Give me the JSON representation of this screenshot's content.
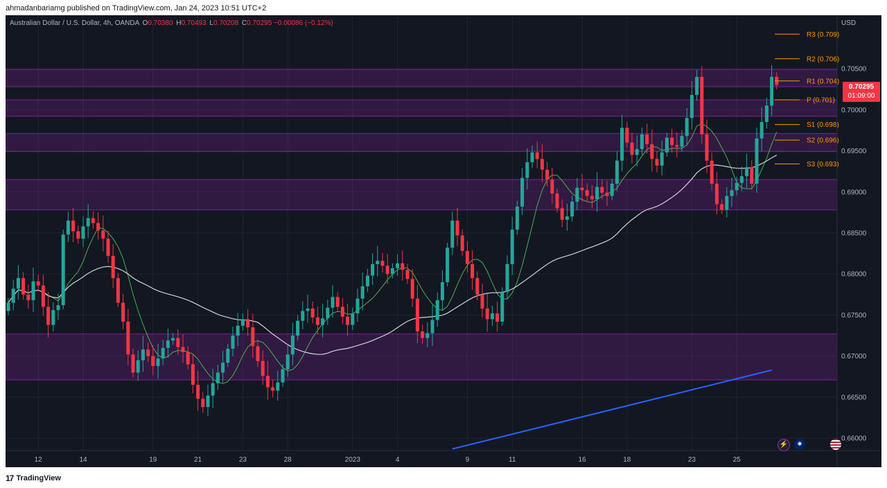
{
  "header": {
    "published_text": "ahmadanbariamg published on TradingView.com, Jan 24, 2023 10:51 UTC+2"
  },
  "legend": {
    "title": "Australian Dollar / U.S. Dollar, 4h, OANDA",
    "o_label": "O",
    "o_value": "0.70380",
    "h_label": "H",
    "h_value": "0.70493",
    "l_label": "L",
    "l_value": "0.70208",
    "c_label": "C",
    "c_value": "0.70295",
    "change": "−0.00086 (−0.12%)"
  },
  "price_axis": {
    "currency": "USD"
  },
  "last_price": {
    "value": "0.70295",
    "countdown": "01:09:00"
  },
  "footer": {
    "brand": "TradingView",
    "logo": "17"
  },
  "icons": [
    "lightning-icon",
    "australia-flag-icon",
    "us-flag-icon"
  ],
  "colors": {
    "up": "#26a69a",
    "down": "#f23645",
    "zone": "#9c27b0",
    "pivot": "#ff9800",
    "ma_short": "#4caf50",
    "ma_long": "#d1d4dc",
    "trendline": "#2962ff",
    "background": "#131722"
  },
  "chart_data": {
    "type": "candlestick",
    "symbol": "Australian Dollar / U.S. Dollar",
    "timeframe": "4h",
    "exchange": "OANDA",
    "ylim": [
      0.6585,
      0.7115
    ],
    "y_ticks": [
      "0.66000",
      "0.66500",
      "0.67000",
      "0.67500",
      "0.68000",
      "0.68500",
      "0.69000",
      "0.69500",
      "0.70000",
      "0.70500"
    ],
    "x_ticks": [
      {
        "label": "12",
        "i": 6
      },
      {
        "label": "14",
        "i": 15
      },
      {
        "label": "19",
        "i": 29
      },
      {
        "label": "21",
        "i": 38
      },
      {
        "label": "23",
        "i": 47
      },
      {
        "label": "28",
        "i": 56
      },
      {
        "label": "2023",
        "i": 69
      },
      {
        "label": "4",
        "i": 78
      },
      {
        "label": "9",
        "i": 92
      },
      {
        "label": "11",
        "i": 101
      },
      {
        "label": "16",
        "i": 115
      },
      {
        "label": "18",
        "i": 124
      },
      {
        "label": "23",
        "i": 137
      },
      {
        "label": "25",
        "i": 146
      }
    ],
    "pivot_levels": [
      {
        "label": "R3 (0.709)",
        "value": 0.7092
      },
      {
        "label": "R2 (0.706)",
        "value": 0.7062
      },
      {
        "label": "R1 (0.704)",
        "value": 0.7035
      },
      {
        "label": "P (0.701)",
        "value": 0.7012
      },
      {
        "label": "S1 (0.698)",
        "value": 0.6982
      },
      {
        "label": "S2 (0.696)",
        "value": 0.6963
      },
      {
        "label": "S3 (0.693)",
        "value": 0.6934
      }
    ],
    "zones": [
      {
        "top": 0.7049,
        "bottom": 0.7028
      },
      {
        "top": 0.7012,
        "bottom": 0.6992
      },
      {
        "top": 0.6971,
        "bottom": 0.6949
      },
      {
        "top": 0.6915,
        "bottom": 0.6878
      },
      {
        "top": 0.6727,
        "bottom": 0.6671
      }
    ],
    "trendline": [
      {
        "i": 89,
        "y": 0.6587
      },
      {
        "i": 153,
        "y": 0.6683
      }
    ],
    "closes": [
      0.6765,
      0.6782,
      0.6795,
      0.6775,
      0.6768,
      0.6791,
      0.6786,
      0.676,
      0.6738,
      0.6756,
      0.6762,
      0.6848,
      0.6865,
      0.6852,
      0.6843,
      0.6858,
      0.6868,
      0.6862,
      0.6853,
      0.6843,
      0.6822,
      0.6795,
      0.6765,
      0.6742,
      0.6702,
      0.668,
      0.6695,
      0.6708,
      0.67,
      0.6688,
      0.6697,
      0.671,
      0.6719,
      0.6722,
      0.6711,
      0.6705,
      0.669,
      0.6665,
      0.6648,
      0.6638,
      0.6652,
      0.6667,
      0.668,
      0.6692,
      0.6709,
      0.6725,
      0.6737,
      0.6745,
      0.6735,
      0.6712,
      0.6694,
      0.6676,
      0.6662,
      0.6658,
      0.6668,
      0.6684,
      0.6702,
      0.6725,
      0.6743,
      0.6755,
      0.6758,
      0.6747,
      0.6738,
      0.6746,
      0.6759,
      0.6772,
      0.676,
      0.6748,
      0.6738,
      0.6752,
      0.677,
      0.6785,
      0.6798,
      0.6812,
      0.6816,
      0.681,
      0.68,
      0.6807,
      0.6813,
      0.6805,
      0.6794,
      0.677,
      0.673,
      0.6722,
      0.6728,
      0.6744,
      0.6768,
      0.679,
      0.6832,
      0.6865,
      0.6847,
      0.6828,
      0.6812,
      0.6795,
      0.6775,
      0.6758,
      0.6745,
      0.6752,
      0.6742,
      0.6778,
      0.6812,
      0.6854,
      0.6882,
      0.6917,
      0.6936,
      0.6948,
      0.694,
      0.6927,
      0.6915,
      0.6898,
      0.688,
      0.6866,
      0.687,
      0.6888,
      0.6905,
      0.6902,
      0.6895,
      0.6891,
      0.6906,
      0.6899,
      0.6895,
      0.691,
      0.6938,
      0.6978,
      0.696,
      0.6945,
      0.6952,
      0.697,
      0.6958,
      0.694,
      0.6932,
      0.6948,
      0.6966,
      0.6957,
      0.6955,
      0.6968,
      0.699,
      0.7018,
      0.704,
      0.697,
      0.6938,
      0.691,
      0.6885,
      0.6878,
      0.6895,
      0.6902,
      0.6911,
      0.6919,
      0.693,
      0.691,
      0.6965,
      0.6985,
      0.7005,
      0.704,
      0.703
    ]
  }
}
